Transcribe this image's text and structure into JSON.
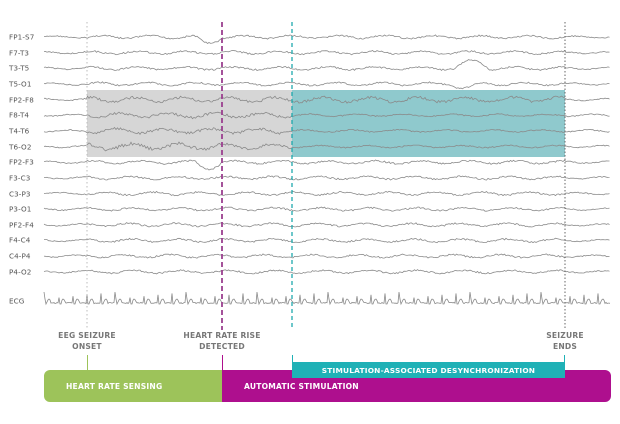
{
  "colors": {
    "trace": "#8a8a8a",
    "label": "#555555",
    "onset_line": "#bbbbbb",
    "seizure_end_line": "#666666",
    "heart_rate_line": "#9b3f8f",
    "desync_line": "#1fa9ad",
    "gray_region": "#d6d6d6",
    "teal_region": "#8fc9cd",
    "green_bar": "#9dc35a",
    "magenta_bar": "#ae0f8e",
    "teal_bar": "#1fb1b6"
  },
  "channels": [
    {
      "label": "FP1-S7"
    },
    {
      "label": "F7-T3"
    },
    {
      "label": "T3-T5"
    },
    {
      "label": "T5-O1"
    },
    {
      "label": "FP2-F8"
    },
    {
      "label": "F8-T4"
    },
    {
      "label": "T4-T6"
    },
    {
      "label": "T6-O2"
    },
    {
      "label": "FP2-F3"
    },
    {
      "label": "F3-C3"
    },
    {
      "label": "C3-P3"
    },
    {
      "label": "P3-O1"
    },
    {
      "label": "PF2-F4"
    },
    {
      "label": "F4-C4"
    },
    {
      "label": "C4-P4"
    },
    {
      "label": "P4-O2"
    }
  ],
  "ecg": {
    "label": "ECG"
  },
  "markers": {
    "eeg_onset": {
      "line1": "EEG SEIZURE",
      "line2": "ONSET"
    },
    "heart_rate_rise": {
      "line1": "HEART RATE RISE",
      "line2": "DETECTED"
    },
    "seizure_ends": {
      "line1": "SEIZURE",
      "line2": "ENDS"
    }
  },
  "bars": {
    "heart_rate_sensing": "HEART RATE SENSING",
    "automatic_stimulation": "AUTOMATIC STIMULATION",
    "desynchronization": "STIMULATION-ASSOCIATED DESYNCHRONIZATION"
  }
}
